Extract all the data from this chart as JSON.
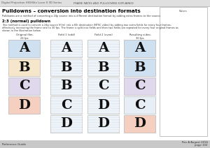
{
  "bg_color": "#ffffff",
  "header_left": "Digital Projection HIGHlite Laser II 3D Series",
  "header_center": "FRAME RATES AND PULLDOWNS EXPLAINED",
  "section_title": "Pulldowns – conversion into destination formats",
  "section_body": "Pulldowns are a method of converting a 24p source into a different destination format by adding extra frames to the source.",
  "subsection_title": "2:3 (normal) pulldown",
  "subsection_body1": "This method is used to convert a 24p source (film) into a 60i destination (NTSC video) by adding two extra fields for every four frames,",
  "subsection_body2": "effectively increasing the frame rate to 30 fps. The frame is split into fields and then two fields are repeated for every four original frames as",
  "subsection_body3": "shown in the illustration below.",
  "col_headers": [
    "Original film,\n24 fps",
    "Field 1 (odd)",
    "Field 2 (even)",
    "Resulting video,\n30 fps"
  ],
  "rows": [
    {
      "col0_label": "A",
      "col0_bg": "#cfe0f0",
      "col1_label": "A",
      "col1_bg": "#e8eef5",
      "col1_lines": true,
      "col2_label": "A",
      "col2_bg": "#e8eef5",
      "col2_lines": true,
      "col3_label": "A",
      "col3_bg": "#cfe0f0"
    },
    {
      "col0_label": "B",
      "col0_bg": "#f5e6cc",
      "col1_label": "B",
      "col1_bg": "#e8eef5",
      "col1_lines": true,
      "col2_label": "B",
      "col2_bg": "#e8eef5",
      "col2_lines": true,
      "col3_label": "B",
      "col3_bg": "#cfe0f0"
    },
    {
      "col0_label": "C",
      "col0_bg": "#e0d8ec",
      "col1_label": "B",
      "col1_bg": "#e8eef5",
      "col1_lines": true,
      "col2_label": "C",
      "col2_bg": "#e8eef5",
      "col2_lines": true,
      "col3_label": "C",
      "col3_bg": "#e0d8ec"
    },
    {
      "col0_label": "D",
      "col0_bg": "#f5cfc0",
      "col1_label": "C",
      "col1_bg": "#e8eef5",
      "col1_lines": true,
      "col2_label": "D",
      "col2_bg": "#e8eef5",
      "col2_lines": true,
      "col3_label": "C",
      "col3_bg": "#e8eef5"
    },
    {
      "col0_label": null,
      "col0_bg": null,
      "col1_label": "D",
      "col1_bg": "#e8eef5",
      "col1_lines": true,
      "col2_label": "D",
      "col2_bg": "#e8eef5",
      "col2_lines": true,
      "col3_label": "D",
      "col3_bg": "#f5cfc0"
    }
  ],
  "footer_left": "Reference Guide",
  "footer_right1": "Rev A August 2016",
  "footer_right2": "page 102",
  "footer_bg": "#c8c8c8"
}
